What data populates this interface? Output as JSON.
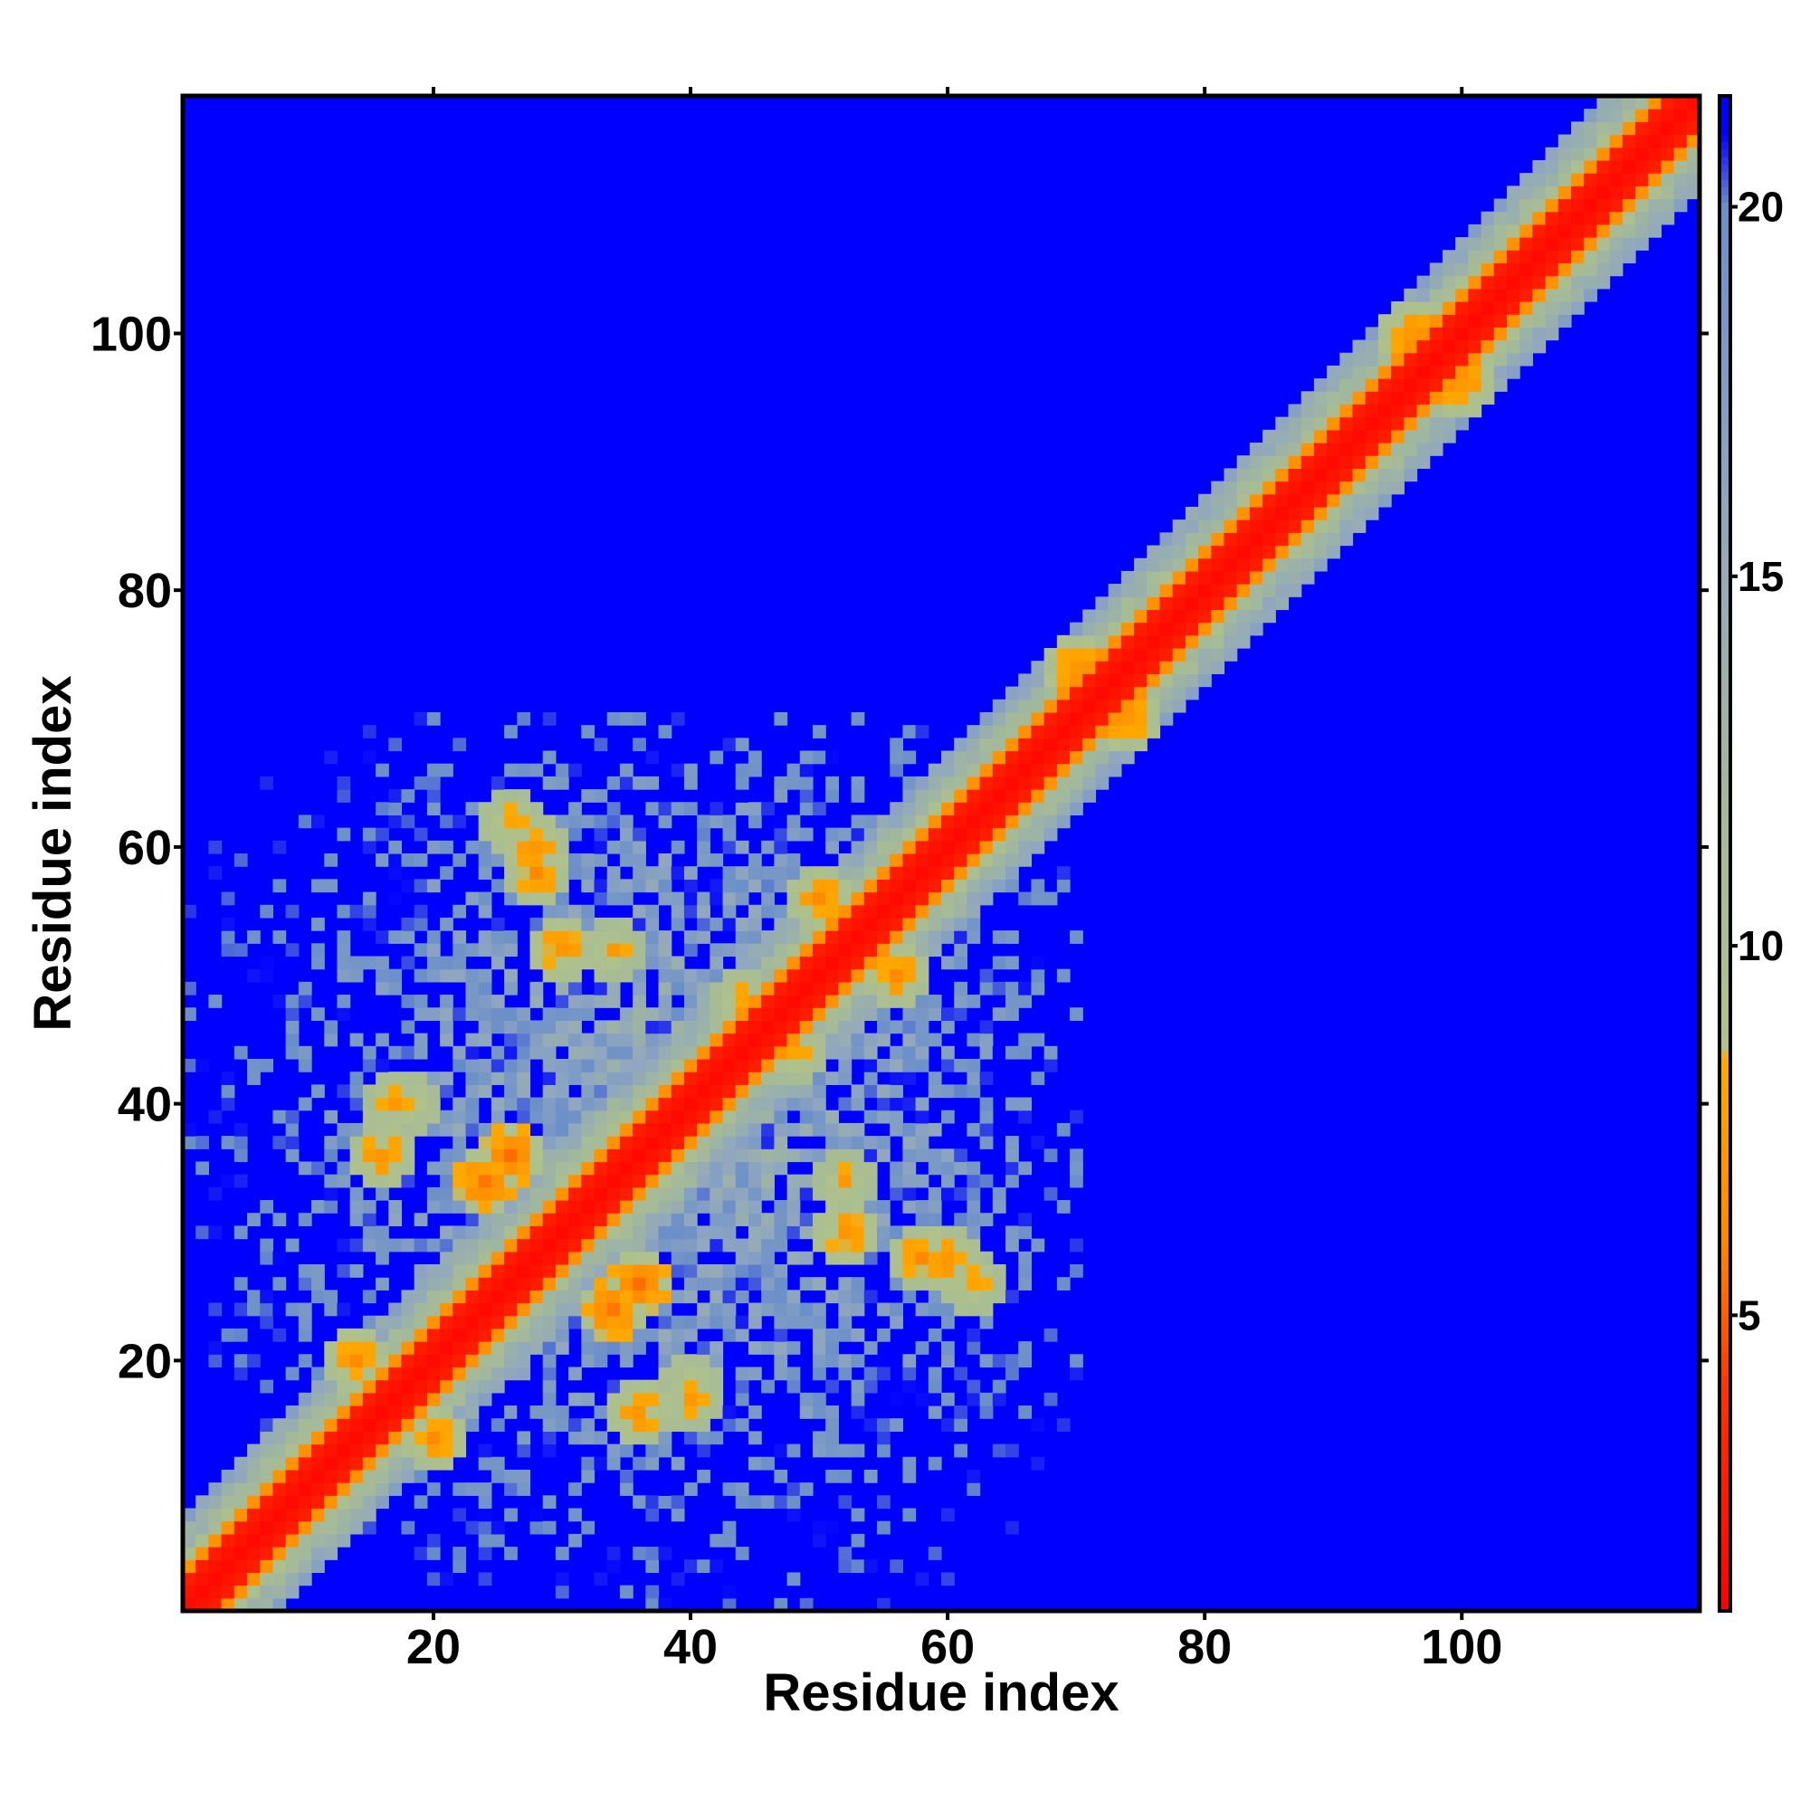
{
  "chart_data": {
    "type": "heatmap",
    "title": "",
    "xlabel": "Residue index",
    "ylabel": "Residue index",
    "n_residues": 118,
    "xlim": [
      0.5,
      118.5
    ],
    "ylim": [
      0.5,
      118.5
    ],
    "x_ticks": [
      20,
      40,
      60,
      80,
      100
    ],
    "y_ticks": [
      20,
      40,
      60,
      80,
      100
    ],
    "colorbar": {
      "range": [
        1,
        21.5
      ],
      "ticks": [
        5,
        10,
        15,
        20
      ],
      "cutoff_value": 21,
      "colors": [
        {
          "v": 1,
          "c": "#ff0000"
        },
        {
          "v": 4,
          "c": "#ff3300"
        },
        {
          "v": 6,
          "c": "#ff8800"
        },
        {
          "v": 8.5,
          "c": "#ffaa00"
        },
        {
          "v": 8.6,
          "c": "#b0c28a"
        },
        {
          "v": 12,
          "c": "#a3b99a"
        },
        {
          "v": 16,
          "c": "#8fa6c0"
        },
        {
          "v": 20,
          "c": "#6b8fc8"
        },
        {
          "v": 21,
          "c": "#0000ff"
        }
      ]
    },
    "background_color": "#0000ff",
    "cells_description": "Symmetric distance map; values are approximate inter-residue distances (Å). Cells above cutoff are shown in background blue.",
    "diagonal_band": {
      "core_width": 2.0,
      "orange_width": 3.5,
      "green_width": 7.0
    },
    "globular_region": {
      "residue_range": [
        1,
        70
      ],
      "center": [
        38,
        38
      ]
    },
    "contact_clusters": [
      {
        "x": 28,
        "y": 60,
        "value": 6
      },
      {
        "x": 30,
        "y": 52,
        "value": 6
      },
      {
        "x": 26,
        "y": 36,
        "value": 5
      },
      {
        "x": 16,
        "y": 36,
        "value": 6
      },
      {
        "x": 18,
        "y": 40,
        "value": 7
      },
      {
        "x": 14,
        "y": 20,
        "value": 6
      },
      {
        "x": 20,
        "y": 14,
        "value": 6
      },
      {
        "x": 34,
        "y": 24,
        "value": 5
      },
      {
        "x": 36,
        "y": 16,
        "value": 6
      },
      {
        "x": 40,
        "y": 17,
        "value": 7
      },
      {
        "x": 52,
        "y": 34,
        "value": 7
      },
      {
        "x": 58,
        "y": 28,
        "value": 6
      },
      {
        "x": 62,
        "y": 26,
        "value": 7
      },
      {
        "x": 50,
        "y": 56,
        "value": 6
      },
      {
        "x": 56,
        "y": 50,
        "value": 6
      },
      {
        "x": 44,
        "y": 48,
        "value": 7
      },
      {
        "x": 48,
        "y": 44,
        "value": 7
      },
      {
        "x": 70,
        "y": 74,
        "value": 6
      },
      {
        "x": 74,
        "y": 70,
        "value": 6
      },
      {
        "x": 96,
        "y": 100,
        "value": 6
      },
      {
        "x": 100,
        "y": 96,
        "value": 6
      }
    ]
  }
}
